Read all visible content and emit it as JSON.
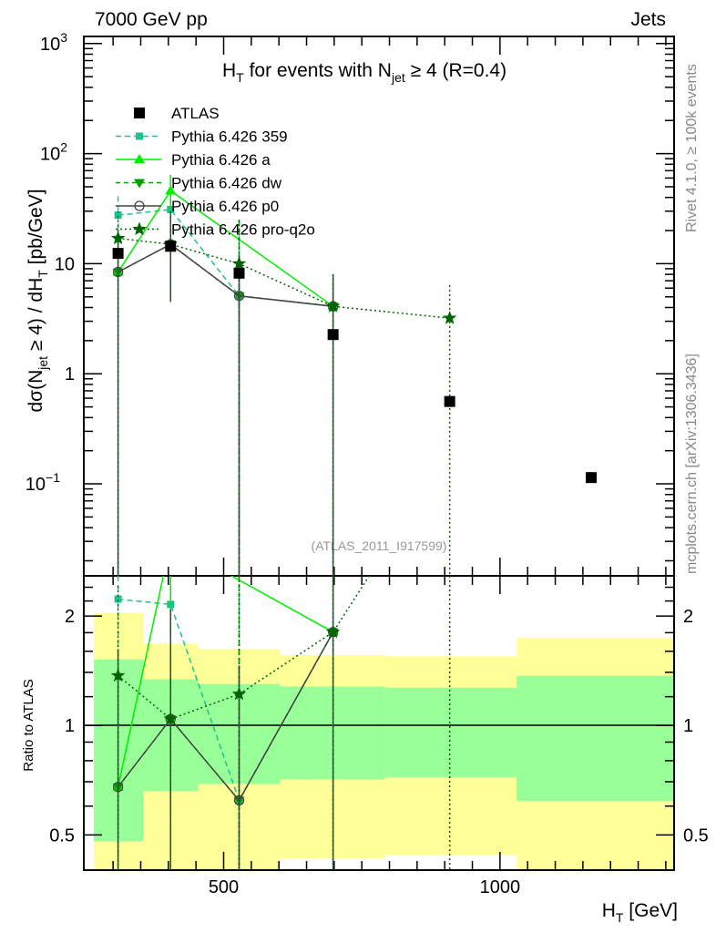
{
  "header": {
    "left": "7000 GeV pp",
    "right": "Jets"
  },
  "side_text": {
    "top": "Rivet 4.1.0, ≥ 100k events",
    "bottom": "mcplots.cern.ch [arXiv:1306.3436]"
  },
  "watermark": "(ATLAS_2011_I917599)",
  "colors": {
    "yellow_band": "#ffff99",
    "green_band": "#99ff99"
  },
  "chart_data": {
    "type": "line",
    "title": {
      "main": "H",
      "sub1": "T",
      "mid": " for events with N",
      "sub2": "jet",
      "tail": " ≥ 4 (R=0.4)"
    },
    "ylabel": {
      "a": "dσ(N",
      "sub1": "jet",
      "b": " ≥ 4) / dH",
      "sub2": "T",
      "c": " [pb/GeV]"
    },
    "xlabel": {
      "a": "H",
      "sub": "T",
      "b": " [GeV]"
    },
    "ratio_ylabel": "Ratio to ATLAS",
    "xlim": [
      247,
      1315
    ],
    "ylim": [
      0.0146,
      1160
    ],
    "yscale": "log",
    "ratio_ylim": [
      0.4,
      2.58
    ],
    "ytick_labels": [
      {
        "v": 1000,
        "base": "10",
        "exp": "3"
      },
      {
        "v": 100,
        "base": "10",
        "exp": "2"
      },
      {
        "v": 10,
        "base": "10",
        "exp": ""
      },
      {
        "v": 1,
        "base": "1",
        "exp": ""
      },
      {
        "v": 0.1,
        "base": "10",
        "exp": "−1"
      }
    ],
    "ratio_tick_labels": [
      {
        "v": 2,
        "label": "2"
      },
      {
        "v": 1,
        "label": "1"
      },
      {
        "v": 0.5,
        "label": "0.5"
      }
    ],
    "xtick_labels": [
      {
        "v": 500,
        "label": "500"
      },
      {
        "v": 1000,
        "label": "1000"
      }
    ],
    "x": [
      309,
      404,
      528,
      698,
      909,
      1165
    ],
    "data": {
      "name": "ATLAS",
      "values": [
        12.4,
        14.4,
        8.2,
        2.27,
        0.56,
        0.114
      ],
      "color": "#000000"
    },
    "bins": [
      265,
      355,
      454,
      602,
      792,
      1030,
      1315
    ],
    "bands": {
      "total": [
        [
          0.3,
          2.04
        ],
        [
          0.3,
          1.68
        ],
        [
          0.3,
          1.62
        ],
        [
          0.43,
          1.56
        ],
        [
          0.44,
          1.55
        ],
        [
          0.3,
          1.74
        ]
      ],
      "stat": [
        [
          0.48,
          1.52
        ],
        [
          0.66,
          1.34
        ],
        [
          0.69,
          1.3
        ],
        [
          0.71,
          1.28
        ],
        [
          0.72,
          1.27
        ],
        [
          0.62,
          1.37
        ]
      ]
    },
    "series": [
      {
        "name": "Pythia 6.426 359",
        "color": "#20c090",
        "dash": "6,4",
        "marker": "square",
        "values": [
          27.6,
          31,
          5.1,
          4.1,
          null,
          null
        ],
        "err": [
          [
            0.001,
            41
          ],
          [
            4.5,
            64
          ],
          [
            0.001,
            25
          ],
          [
            0.001,
            8
          ],
          null,
          null
        ]
      },
      {
        "name": "Pythia 6.426 a",
        "color": "#00ee00",
        "dash": "",
        "marker": "triangle-up",
        "values": [
          8.4,
          46,
          null,
          4.1,
          null,
          null
        ],
        "err": [
          null,
          [
            4.5,
            64
          ],
          null,
          null,
          null,
          null
        ]
      },
      {
        "name": "Pythia 6.426 dw",
        "color": "#00a000",
        "dash": "5,4",
        "marker": "triangle-down",
        "values": [
          8.4,
          15,
          5.1,
          4.1,
          null,
          null
        ],
        "err": [
          null,
          null,
          [
            0.001,
            25
          ],
          null,
          null,
          null
        ]
      },
      {
        "name": "Pythia 6.426 p0",
        "color": "#444444",
        "dash": "",
        "marker": "circle-open",
        "values": [
          8.4,
          15,
          5.1,
          4.1,
          null,
          null
        ],
        "err": [
          [
            0.001,
            20
          ],
          [
            4.5,
            30
          ],
          [
            0.001,
            12
          ],
          [
            0.001,
            8
          ],
          null,
          null
        ]
      },
      {
        "name": "Pythia 6.426 pro-q2o",
        "color": "#006400",
        "dash": "2,3",
        "marker": "star",
        "values": [
          17,
          15,
          10,
          4.1,
          3.2,
          null
        ],
        "err": [
          [
            0.001,
            30
          ],
          [
            4.5,
            30
          ],
          [
            0.001,
            25
          ],
          [
            0.001,
            8
          ],
          [
            0.001,
            6.4
          ],
          null
        ]
      }
    ]
  }
}
